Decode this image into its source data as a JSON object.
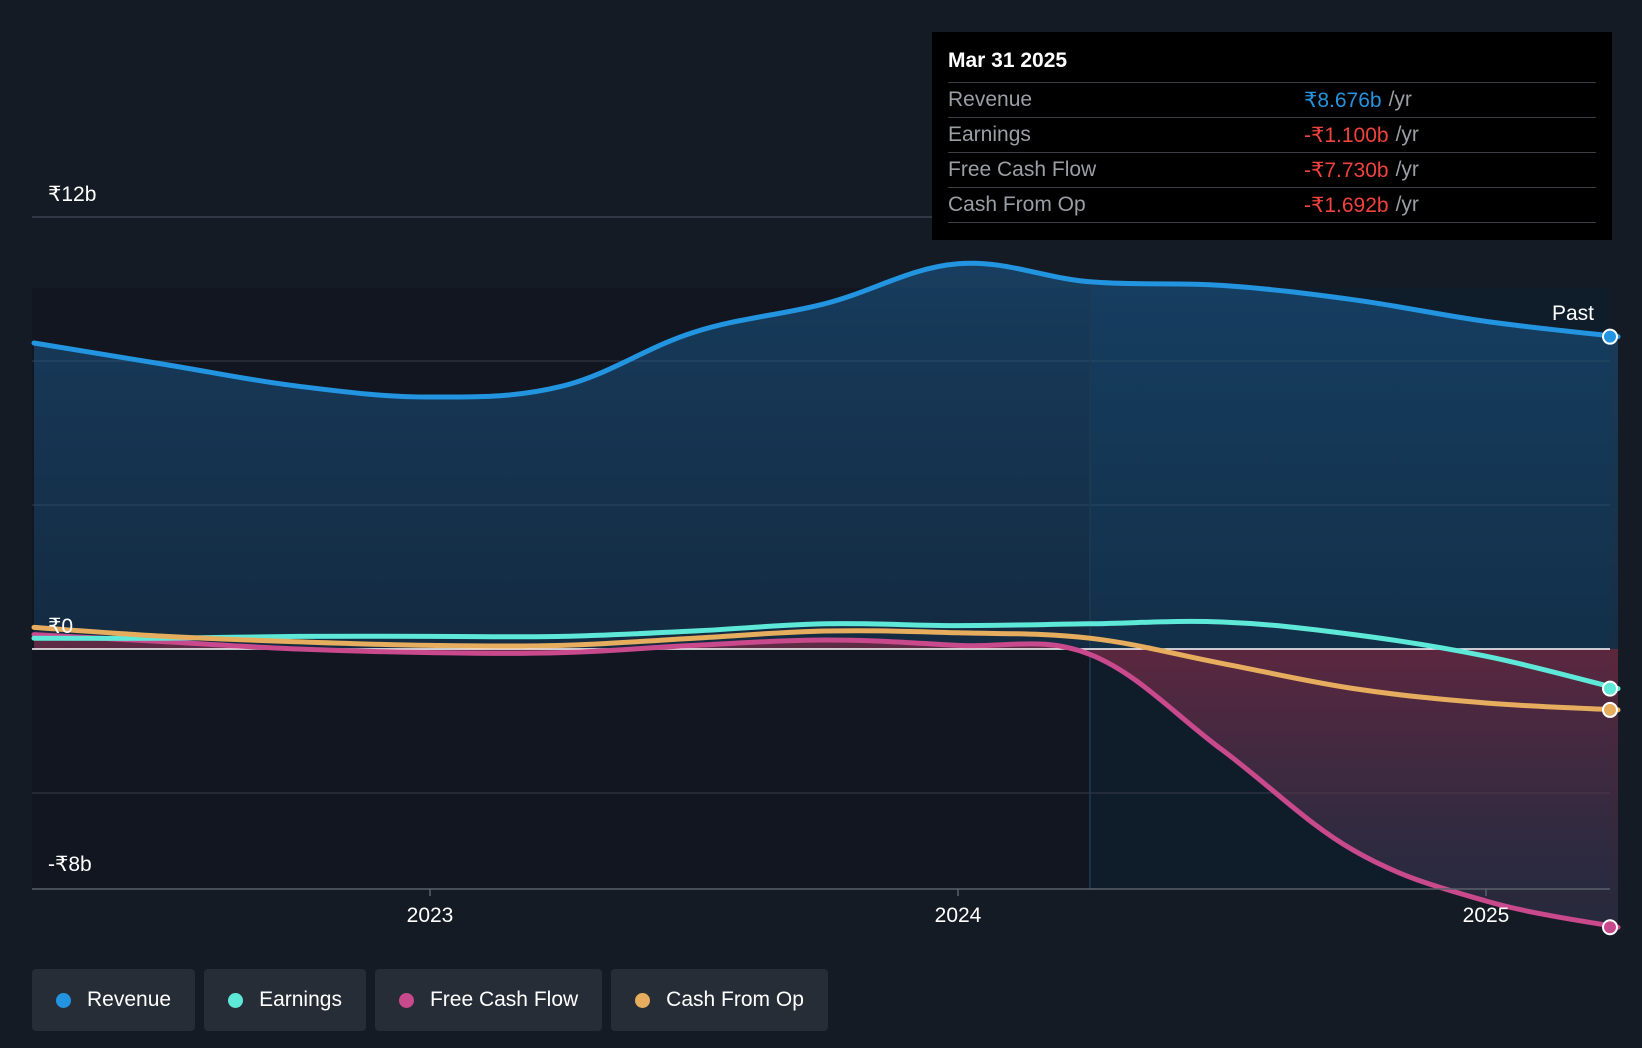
{
  "colors": {
    "revenue": "#2394df",
    "earnings": "#5ee8d8",
    "fcf": "#c8498c",
    "cfo": "#e6ad5e",
    "negative": "#f0433d"
  },
  "tooltip": {
    "date": "Mar 31 2025",
    "rows": [
      {
        "label": "Revenue",
        "value": "₹8.676b",
        "unit": "/yr"
      },
      {
        "label": "Earnings",
        "value": "-₹1.100b",
        "unit": "/yr"
      },
      {
        "label": "Free Cash Flow",
        "value": "-₹7.730b",
        "unit": "/yr"
      },
      {
        "label": "Cash From Op",
        "value": "-₹1.692b",
        "unit": "/yr"
      }
    ]
  },
  "legend": [
    {
      "label": "Revenue",
      "icon": "revenue-dot-icon"
    },
    {
      "label": "Earnings",
      "icon": "earnings-dot-icon"
    },
    {
      "label": "Free Cash Flow",
      "icon": "fcf-dot-icon"
    },
    {
      "label": "Cash From Op",
      "icon": "cfo-dot-icon"
    }
  ],
  "chart_data": {
    "type": "line",
    "title": "",
    "xlabel": "",
    "ylabel": "",
    "past_label": "Past",
    "y_tick_labels": [
      "₹12b",
      "₹0",
      "-₹8b"
    ],
    "x_tick_labels": [
      "2023",
      "2024",
      "2025"
    ],
    "x_ticks": [
      2023.0,
      2024.0,
      2025.0
    ],
    "xlim": [
      2022.12,
      2025.25
    ],
    "ylim": [
      -8,
      12
    ],
    "past_start": 2024.25,
    "x": [
      2022.25,
      2022.5,
      2022.75,
      2023.0,
      2023.25,
      2023.5,
      2023.75,
      2024.0,
      2024.25,
      2024.5,
      2024.75,
      2025.0,
      2025.25
    ],
    "series": [
      {
        "name": "Revenue",
        "key": "revenue",
        "values": [
          8.5,
          7.9,
          7.3,
          7.0,
          7.3,
          8.8,
          9.6,
          10.7,
          10.2,
          10.1,
          9.7,
          9.1,
          8.676
        ]
      },
      {
        "name": "Earnings",
        "key": "earnings",
        "values": [
          0.3,
          0.3,
          0.35,
          0.35,
          0.35,
          0.5,
          0.7,
          0.65,
          0.7,
          0.75,
          0.4,
          -0.2,
          -1.1
        ]
      },
      {
        "name": "Free Cash Flow",
        "key": "fcf",
        "values": [
          0.4,
          0.2,
          0.0,
          -0.1,
          -0.1,
          0.1,
          0.25,
          0.1,
          -0.15,
          -2.8,
          -5.6,
          -7.0,
          -7.73
        ]
      },
      {
        "name": "Cash From Op",
        "key": "cfo",
        "values": [
          0.6,
          0.35,
          0.2,
          0.1,
          0.1,
          0.3,
          0.5,
          0.45,
          0.3,
          -0.4,
          -1.1,
          -1.5,
          -1.692
        ]
      }
    ]
  }
}
